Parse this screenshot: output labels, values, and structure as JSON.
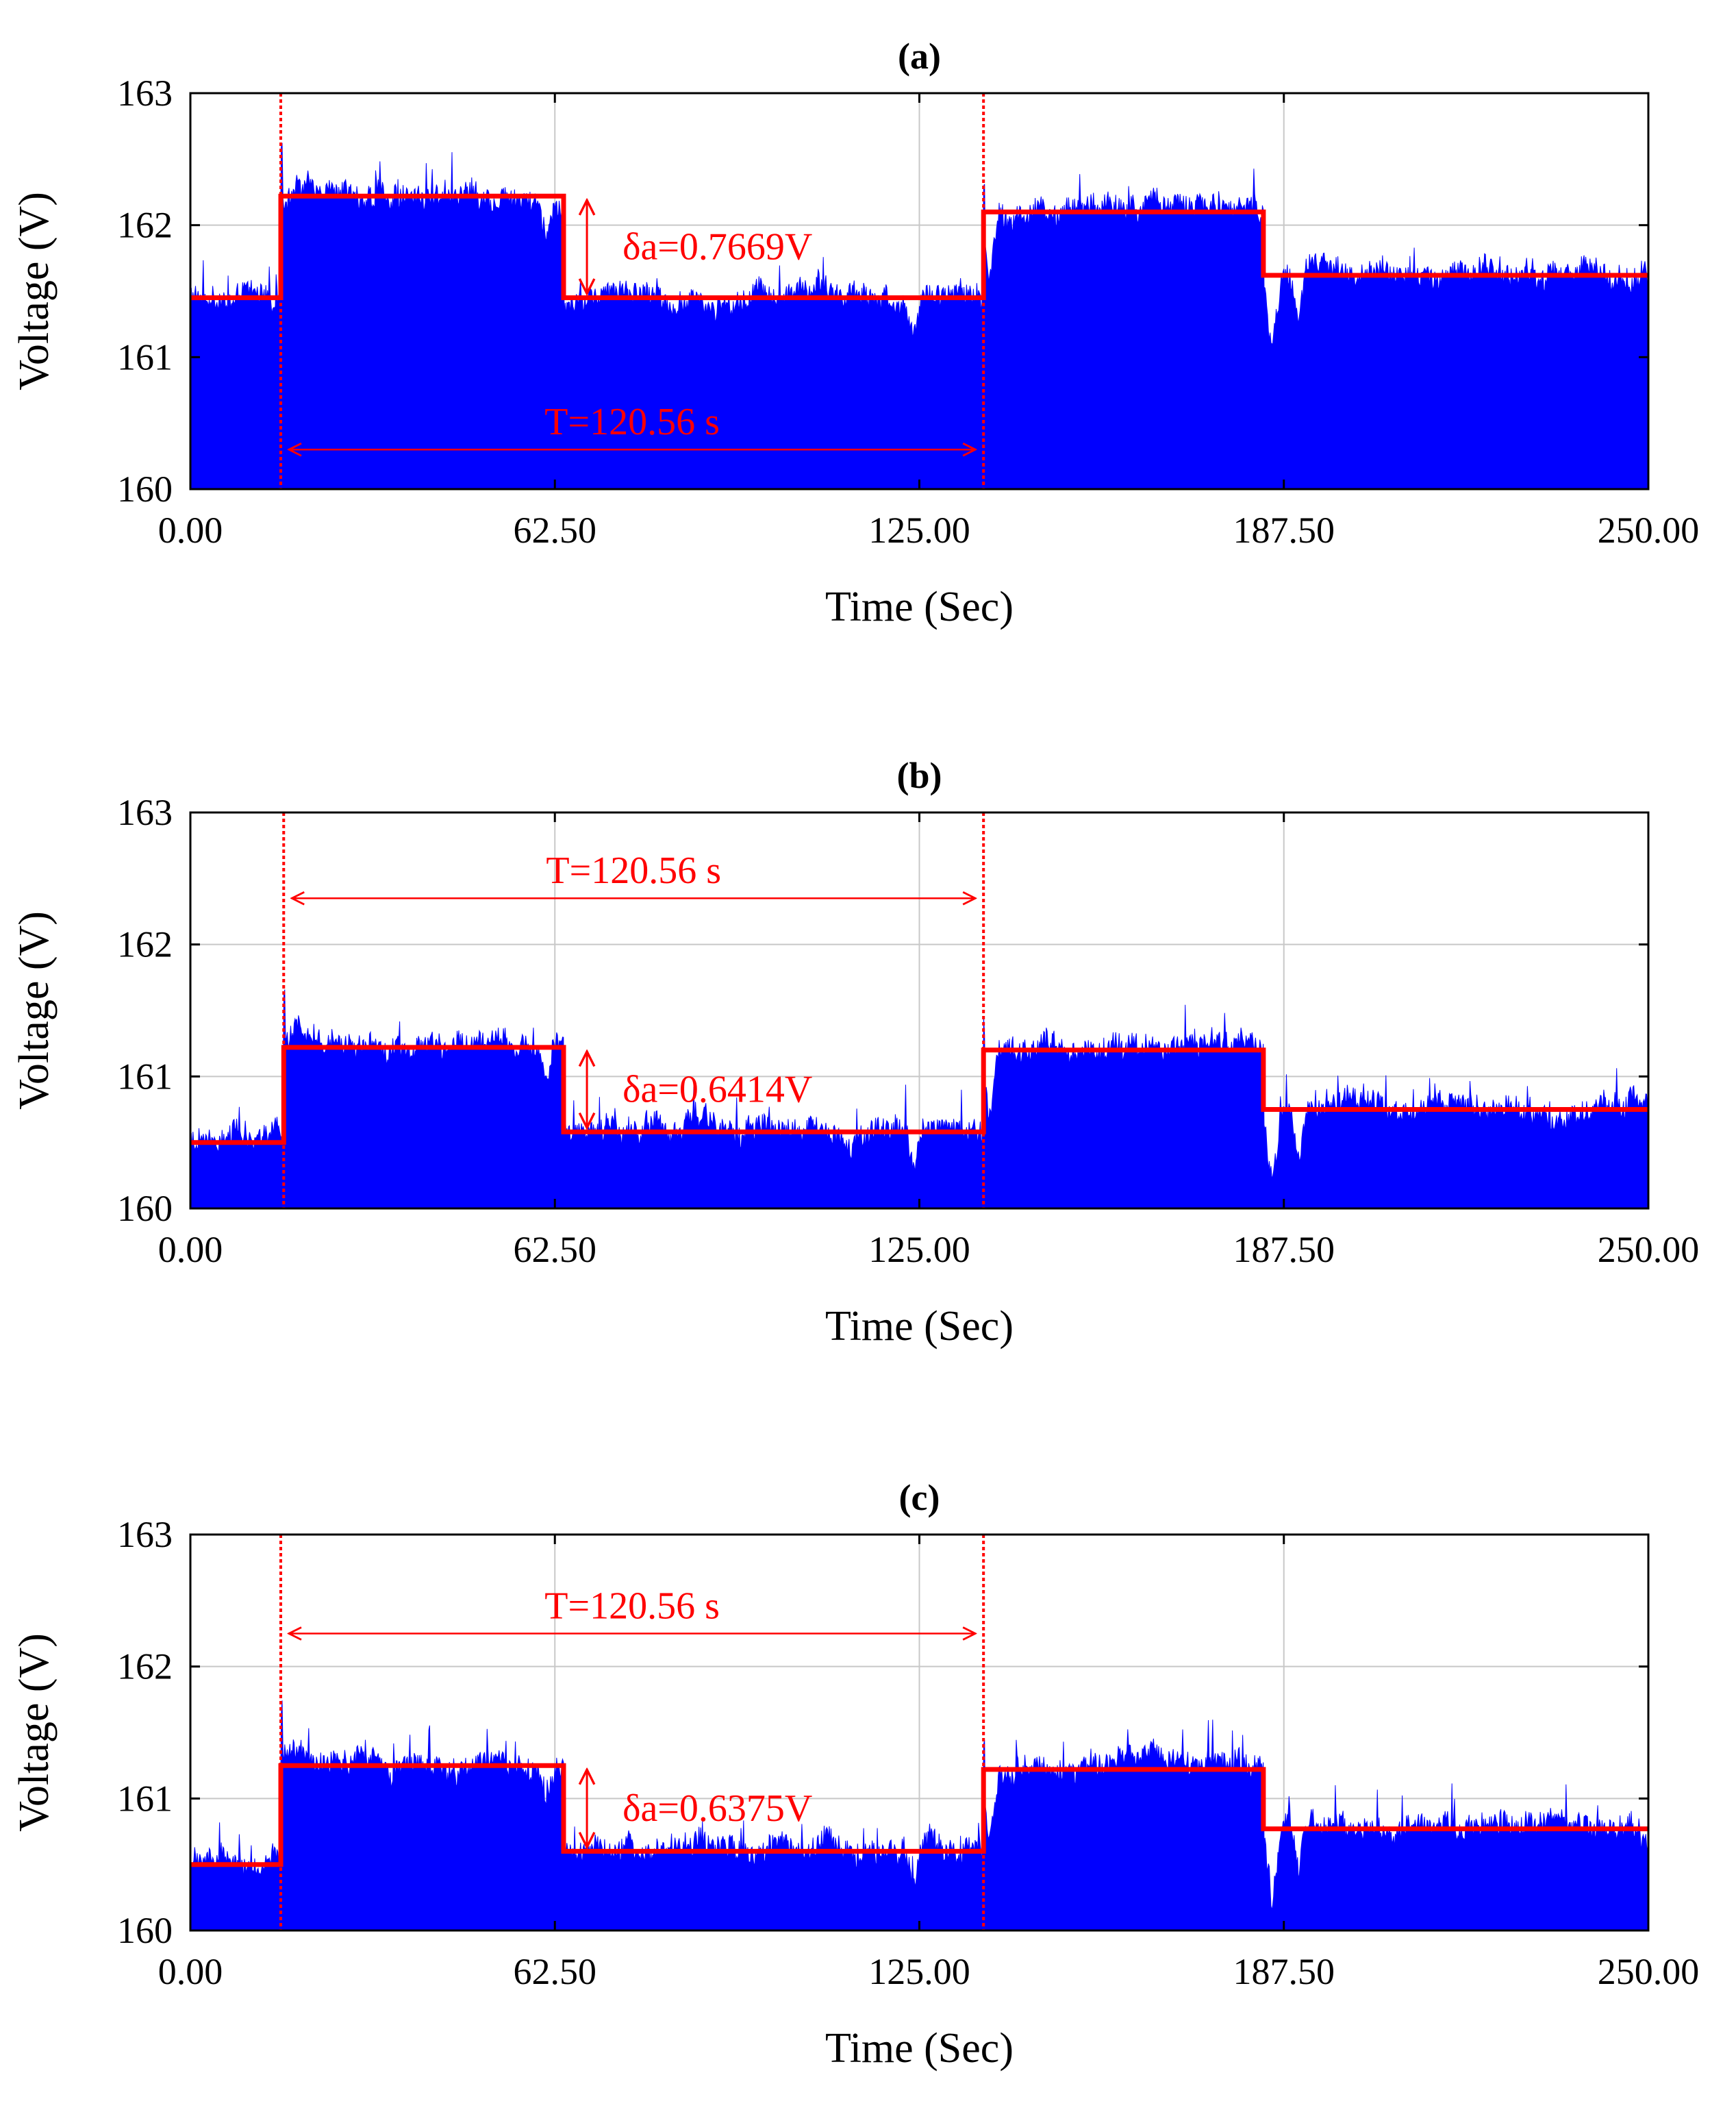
{
  "chart_data": [
    {
      "type": "area",
      "panel": "a",
      "title": "(a)",
      "xlabel": "Time (Sec)",
      "ylabel": "Voltage (V)",
      "xlim": [
        0,
        250
      ],
      "ylim": [
        160,
        163
      ],
      "xticks": [
        "0.00",
        "62.50",
        "125.00",
        "187.50",
        "250.00"
      ],
      "yticks": [
        "160",
        "161",
        "162",
        "163"
      ],
      "grid": true,
      "series": [
        {
          "name": "measured voltage",
          "color": "#0000ff",
          "kind": "noisy-fill"
        },
        {
          "name": "step fit",
          "color": "#ff0000",
          "kind": "step",
          "steps": [
            [
              0,
              15.5,
              161.45
            ],
            [
              15.5,
              64,
              162.22
            ],
            [
              64,
              136,
              161.45
            ],
            [
              136,
              184,
              162.1
            ],
            [
              184,
              250,
              161.62
            ]
          ]
        }
      ],
      "markers": [
        15.5,
        136
      ],
      "dips": [
        [
          61,
          0.3
        ],
        [
          124,
          0.3
        ],
        [
          137,
          0.5
        ],
        [
          185.5,
          0.6
        ],
        [
          190,
          0.35
        ]
      ],
      "period_label": "T=120.56 s",
      "period_y": 160.3,
      "delta_label": "δa=0.7669V",
      "delta_x": 68,
      "delta_range": [
        161.45,
        162.22
      ]
    },
    {
      "type": "area",
      "panel": "b",
      "title": "(b)",
      "xlabel": "Time (Sec)",
      "ylabel": "Voltage (V)",
      "xlim": [
        0,
        250
      ],
      "ylim": [
        160,
        163
      ],
      "xticks": [
        "0.00",
        "62.50",
        "125.00",
        "187.50",
        "250.00"
      ],
      "yticks": [
        "160",
        "161",
        "162",
        "163"
      ],
      "grid": true,
      "series": [
        {
          "name": "measured voltage",
          "color": "#0000ff",
          "kind": "noisy-fill"
        },
        {
          "name": "step fit",
          "color": "#ff0000",
          "kind": "step",
          "steps": [
            [
              0,
              16,
              160.5
            ],
            [
              16,
              64,
              161.22
            ],
            [
              64,
              136,
              160.58
            ],
            [
              136,
              184,
              161.2
            ],
            [
              184,
              250,
              160.75
            ]
          ]
        }
      ],
      "markers": [
        16,
        136
      ],
      "dips": [
        [
          61,
          0.3
        ],
        [
          124,
          0.3
        ],
        [
          137,
          0.5
        ],
        [
          185.5,
          0.6
        ],
        [
          190,
          0.35
        ]
      ],
      "period_label": "T=120.56 s",
      "period_y": 162.35,
      "delta_label": "δa=0.6414V",
      "delta_x": 68,
      "delta_range": [
        160.58,
        161.22
      ]
    },
    {
      "type": "area",
      "panel": "c",
      "title": "(c)",
      "xlabel": "Time (Sec)",
      "ylabel": "Voltage (V)",
      "xlim": [
        0,
        250
      ],
      "ylim": [
        160,
        163
      ],
      "xticks": [
        "0.00",
        "62.50",
        "125.00",
        "187.50",
        "250.00"
      ],
      "yticks": [
        "160",
        "161",
        "162",
        "163"
      ],
      "grid": true,
      "series": [
        {
          "name": "measured voltage",
          "color": "#0000ff",
          "kind": "noisy-fill"
        },
        {
          "name": "step fit",
          "color": "#ff0000",
          "kind": "step",
          "steps": [
            [
              0,
              15.5,
              160.5
            ],
            [
              15.5,
              64,
              161.25
            ],
            [
              64,
              136,
              160.6
            ],
            [
              136,
              184,
              161.22
            ],
            [
              184,
              250,
              160.77
            ]
          ]
        }
      ],
      "markers": [
        15.5,
        136
      ],
      "dips": [
        [
          61,
          0.3
        ],
        [
          124,
          0.3
        ],
        [
          137,
          0.5
        ],
        [
          185.5,
          0.6
        ],
        [
          190,
          0.35
        ]
      ],
      "period_label": "T=120.56 s",
      "period_y": 162.25,
      "delta_label": "δa=0.6375V",
      "delta_x": 68,
      "delta_range": [
        160.6,
        161.25
      ]
    }
  ],
  "colors": {
    "signal": "#0000ff",
    "fit": "#ff0000",
    "grid": "#c8c8c8",
    "axis": "#000000"
  }
}
